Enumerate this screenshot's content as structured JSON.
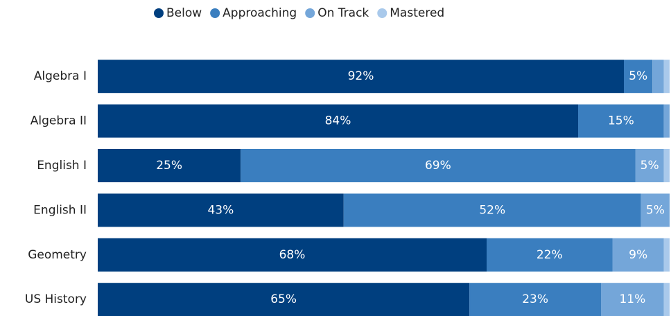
{
  "chart_data": {
    "type": "stacked_bar_horizontal_100",
    "categories": [
      "Algebra I",
      "Algebra II",
      "English I",
      "English II",
      "Geometry",
      "US History"
    ],
    "xlim": [
      0,
      100
    ],
    "legend": "top",
    "series": [
      {
        "name": "Below",
        "color": "#003f7f",
        "values": [
          92,
          84,
          25,
          43,
          68,
          65
        ],
        "value_labels": [
          "92%",
          "84%",
          "25%",
          "43%",
          "68%",
          "65%"
        ]
      },
      {
        "name": "Approaching",
        "color": "#3a7ebf",
        "values": [
          5,
          15,
          69,
          52,
          22,
          23
        ],
        "value_labels": [
          "5%",
          "15%",
          "69%",
          "52%",
          "22%",
          "23%"
        ]
      },
      {
        "name": "On Track",
        "color": "#74a6d9",
        "values": [
          2,
          1,
          5,
          5,
          9,
          11
        ],
        "value_labels": [
          null,
          null,
          "5%",
          "5%",
          "9%",
          "11%"
        ]
      },
      {
        "name": "Mastered",
        "color": "#a9c9eb",
        "values": [
          1,
          0,
          1,
          0,
          1,
          1
        ],
        "value_labels": [
          null,
          null,
          null,
          null,
          null,
          null
        ]
      }
    ]
  }
}
